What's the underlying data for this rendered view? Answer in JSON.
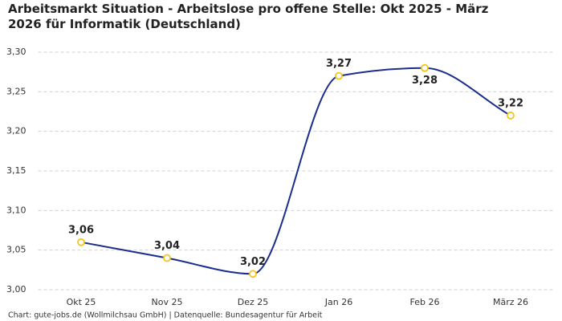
{
  "chart_data": {
    "type": "line",
    "title": "Arbeitsmarkt Situation - Arbeitslose pro offene Stelle: Okt 2025 - März 2026 für Informatik (Deutschland)",
    "source": "Chart: gute-jobs.de (Wollmilchsau GmbH) | Datenquelle: Bundesagentur für Arbeit",
    "categories": [
      "Okt 25",
      "Nov 25",
      "Dez 25",
      "Jan 26",
      "Feb 26",
      "März 26"
    ],
    "series": [
      {
        "name": "Arbeitslose pro offene Stelle",
        "color": "#1a2d8c",
        "marker_color": "#f5c518",
        "values": [
          3.06,
          3.04,
          3.02,
          3.27,
          3.28,
          3.22
        ],
        "value_labels": [
          "3,06",
          "3,04",
          "3,02",
          "3,27",
          "3,28",
          "3,22"
        ]
      }
    ],
    "ylim": [
      3.0,
      3.3
    ],
    "yticks": [
      {
        "value": 3.0,
        "label": "3,00"
      },
      {
        "value": 3.05,
        "label": "3,05"
      },
      {
        "value": 3.1,
        "label": "3,10"
      },
      {
        "value": 3.15,
        "label": "3,15"
      },
      {
        "value": 3.2,
        "label": "3,20"
      },
      {
        "value": 3.25,
        "label": "3,25"
      },
      {
        "value": 3.3,
        "label": "3,30"
      }
    ],
    "grid": true
  }
}
